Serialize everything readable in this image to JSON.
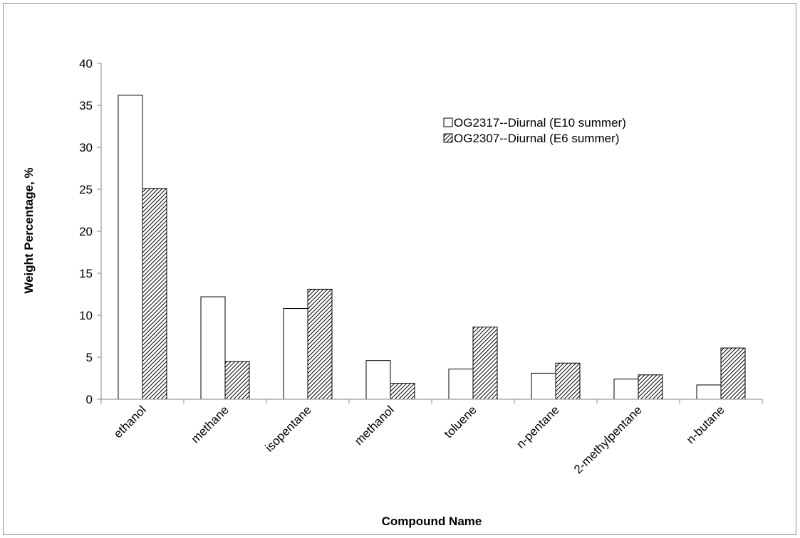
{
  "chart_data": {
    "type": "bar",
    "xlabel": "Compound Name",
    "ylabel": "Weight Percentage, %",
    "ylim": [
      0,
      40
    ],
    "yticks": [
      0,
      5,
      10,
      15,
      20,
      25,
      30,
      35,
      40
    ],
    "categories": [
      "ethanol",
      "methane",
      "isopentane",
      "methanol",
      "toluene",
      "n-pentane",
      "2-methylpentane",
      "n-butane"
    ],
    "series": [
      {
        "name": "OG2317--Diurnal (E10 summer)",
        "fill": "white",
        "values": [
          36.2,
          12.2,
          10.8,
          4.6,
          3.6,
          3.1,
          2.4,
          1.7
        ]
      },
      {
        "name": "OG2307--Diurnal (E6 summer)",
        "fill": "hatched",
        "values": [
          25.1,
          4.5,
          13.1,
          1.9,
          8.6,
          4.3,
          2.9,
          6.1
        ]
      }
    ],
    "grid": false,
    "legend_position": "top-right",
    "colors": {
      "bar_stroke": "#000000",
      "hatch": "#000000",
      "frame": "#8c8c8c"
    }
  }
}
